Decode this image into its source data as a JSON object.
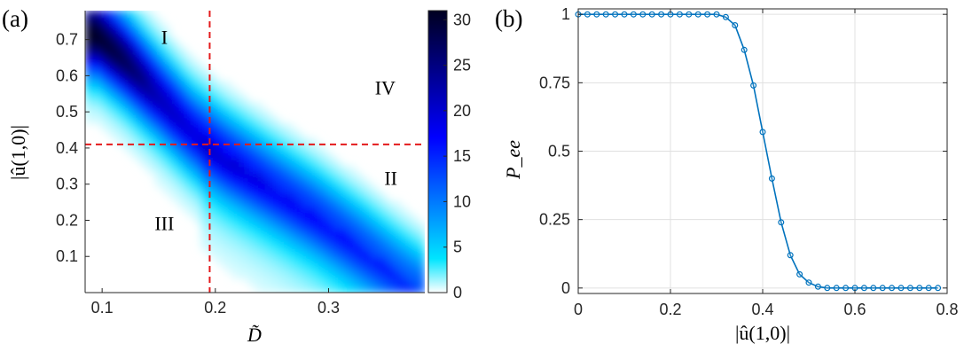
{
  "figure": {
    "panel_a_label": "(a)",
    "panel_b_label": "(b)"
  },
  "chart_data": [
    {
      "type": "heatmap",
      "panel": "(a)",
      "xlabel": "D̃",
      "ylabel": "|û(1,0)|",
      "xlim": [
        0.085,
        0.385
      ],
      "ylim": [
        0.0,
        0.78
      ],
      "xticks": [
        "0.1",
        "0.2",
        "0.3"
      ],
      "xtick_values": [
        0.1,
        0.2,
        0.3
      ],
      "yticks": [
        "0.1",
        "0.2",
        "0.3",
        "0.4",
        "0.5",
        "0.6",
        "0.7"
      ],
      "ytick_values": [
        0.1,
        0.2,
        0.3,
        0.4,
        0.5,
        0.6,
        0.7
      ],
      "colorbar": {
        "ticks": [
          "0",
          "5",
          "10",
          "15",
          "20",
          "25",
          "30"
        ],
        "tick_values": [
          0,
          5,
          10,
          15,
          20,
          25,
          30
        ],
        "range": [
          0,
          31
        ],
        "colors": [
          "#ffffff",
          "#00e5ff",
          "#0000ff",
          "#000020"
        ]
      },
      "ridge": {
        "x": [
          0.095,
          0.12,
          0.15,
          0.18,
          0.21,
          0.25,
          0.29,
          0.33,
          0.36
        ],
        "y": [
          0.72,
          0.65,
          0.55,
          0.45,
          0.38,
          0.3,
          0.22,
          0.13,
          0.06
        ],
        "peak_values": [
          30,
          27,
          21,
          18,
          17,
          15,
          14,
          13,
          12
        ]
      },
      "threshold_lines": {
        "x": 0.195,
        "y": 0.41,
        "color": "#e41a1c"
      },
      "regions": [
        {
          "label": "I",
          "x": 0.155,
          "y": 0.7
        },
        {
          "label": "II",
          "x": 0.355,
          "y": 0.31
        },
        {
          "label": "III",
          "x": 0.155,
          "y": 0.185
        },
        {
          "label": "IV",
          "x": 0.35,
          "y": 0.56
        }
      ]
    },
    {
      "type": "line",
      "panel": "(b)",
      "xlabel": "|û(1,0)|",
      "ylabel": "P_ee",
      "xlim": [
        0,
        0.8
      ],
      "ylim": [
        -0.02,
        1.02
      ],
      "xticks": [
        "0",
        "0.2",
        "0.4",
        "0.6",
        "0.8"
      ],
      "xtick_values": [
        0,
        0.2,
        0.4,
        0.6,
        0.8
      ],
      "yticks": [
        "0",
        "0.25",
        "0.5",
        "0.75",
        "1"
      ],
      "ytick_values": [
        0,
        0.25,
        0.5,
        0.75,
        1
      ],
      "grid": true,
      "color": "#0072bd",
      "series": [
        {
          "x": [
            0.0,
            0.02,
            0.04,
            0.06,
            0.08,
            0.1,
            0.12,
            0.14,
            0.16,
            0.18,
            0.2,
            0.22,
            0.24,
            0.26,
            0.28,
            0.3,
            0.32,
            0.34,
            0.36,
            0.38,
            0.4,
            0.42,
            0.44,
            0.46,
            0.48,
            0.5,
            0.52,
            0.54,
            0.56,
            0.58,
            0.6,
            0.62,
            0.64,
            0.66,
            0.68,
            0.7,
            0.72,
            0.74,
            0.76,
            0.78
          ],
          "y": [
            1,
            1,
            1,
            1,
            1,
            1,
            1,
            1,
            1,
            1,
            1,
            1,
            1,
            1,
            1,
            1,
            0.99,
            0.96,
            0.87,
            0.74,
            0.57,
            0.4,
            0.24,
            0.12,
            0.05,
            0.02,
            0.005,
            0,
            0,
            0,
            0,
            0,
            0,
            0,
            0,
            0,
            0,
            0,
            0,
            0
          ]
        }
      ]
    }
  ]
}
